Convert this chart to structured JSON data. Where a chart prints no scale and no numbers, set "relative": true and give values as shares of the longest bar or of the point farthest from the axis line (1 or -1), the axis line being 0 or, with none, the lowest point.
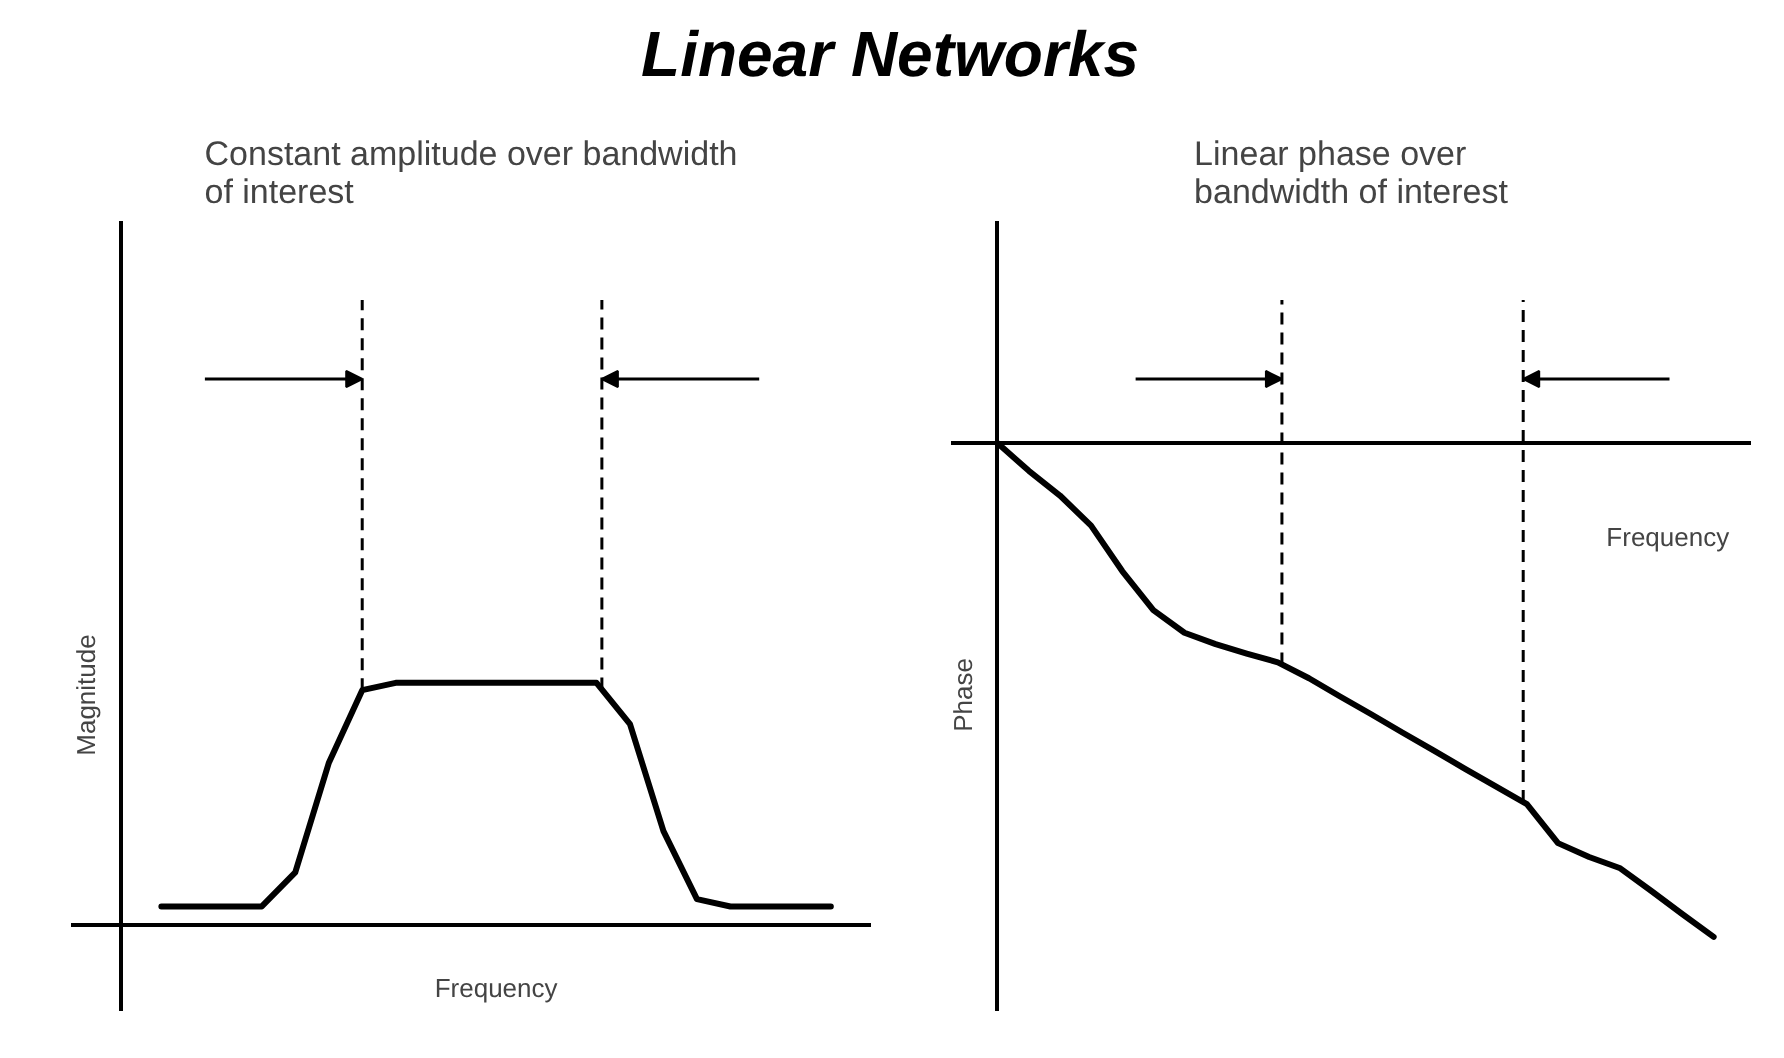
{
  "chart_data": [
    {
      "type": "line",
      "title": "Linear Networks",
      "subtitle": "Constant amplitude over bandwidth\nof interest",
      "xlabel": "Frequency",
      "ylabel": "Magnitude",
      "relative": true,
      "categories": [
        null,
        null,
        null,
        null,
        null,
        null,
        null,
        null,
        null,
        null,
        null,
        null,
        null,
        null,
        null,
        null,
        null,
        null,
        null,
        null,
        null
      ],
      "series": [
        {
          "color": "#000000",
          "values": [
            0.08,
            0.08,
            0.08,
            0.08,
            0.22,
            0.67,
            0.97,
            1,
            1,
            1,
            1,
            1,
            1,
            1,
            0.83,
            0.39,
            0.11,
            0.08,
            0.08,
            0.08,
            0.08
          ]
        }
      ]
    },
    {
      "type": "line",
      "subtitle": "Linear phase over\nbandwidth of interest",
      "xlabel": "Frequency",
      "ylabel": "Phase",
      "relative": true,
      "categories": [
        null,
        null,
        null,
        null,
        null,
        null,
        null,
        null,
        null,
        null,
        null,
        null,
        null,
        null,
        null,
        null,
        null,
        null,
        null,
        null,
        null,
        null,
        null,
        null
      ],
      "series": [
        {
          "color": "#000000",
          "values": [
            0,
            -0.056,
            -0.106,
            -0.167,
            -0.259,
            -0.338,
            -0.384,
            -0.407,
            -0.426,
            -0.444,
            -0.476,
            -0.513,
            -0.549,
            -0.586,
            -0.622,
            -0.659,
            -0.695,
            -0.731,
            -0.81,
            -0.838,
            -0.861,
            -0.907,
            -0.954,
            -1
          ]
        }
      ]
    }
  ]
}
